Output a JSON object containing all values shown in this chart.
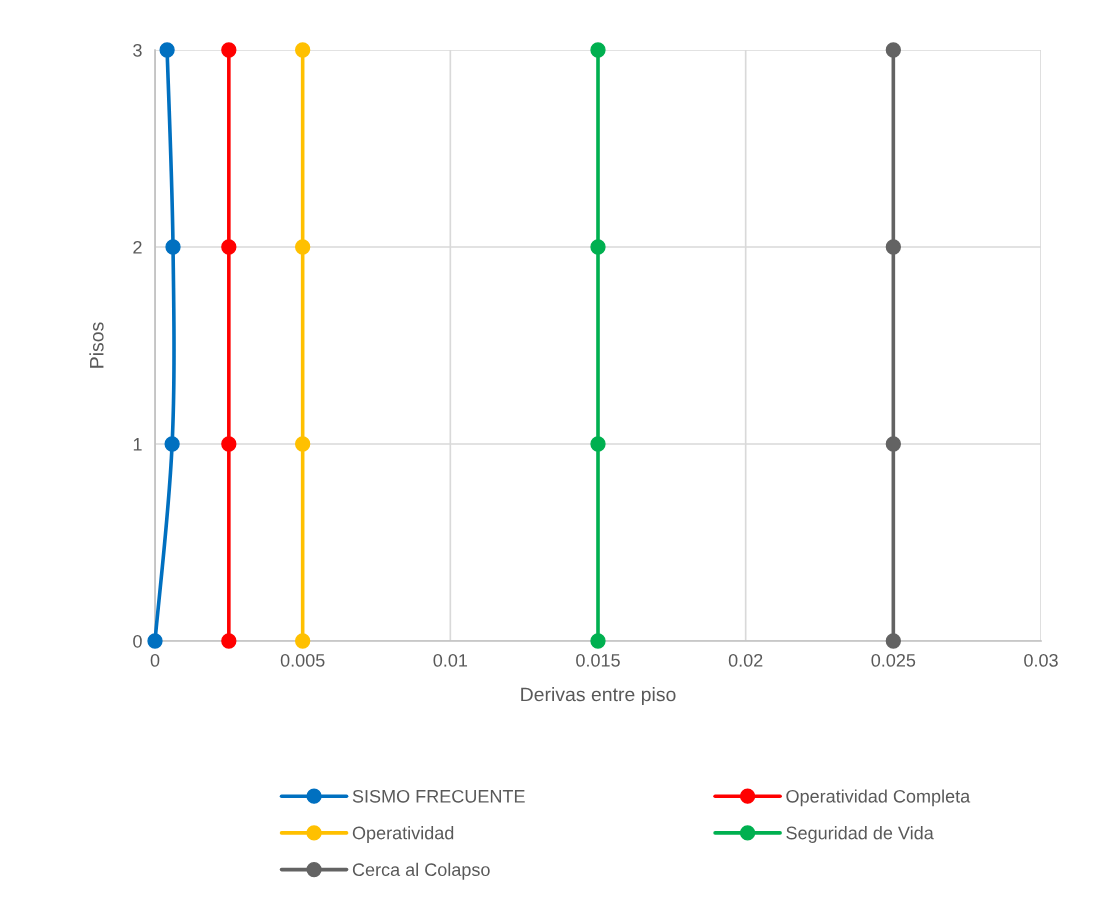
{
  "chart_data": {
    "type": "line",
    "xlabel": "Derivas entre piso",
    "ylabel": "Pisos",
    "xlim": [
      0,
      0.03
    ],
    "xticks": [
      0,
      0.005,
      0.01,
      0.015,
      0.02,
      0.025,
      0.03
    ],
    "ylim": [
      0,
      3
    ],
    "yticks": [
      0,
      1,
      2,
      3
    ],
    "grid": true,
    "legend": "bottom",
    "marker": "circle",
    "line_style": "solid",
    "series": [
      {
        "name": "SISMO FRECUENTE",
        "color": "#0070c0",
        "x": [
          0,
          0.00058,
          0.00061,
          0.00041
        ],
        "values": [
          0,
          1,
          2,
          3
        ]
      },
      {
        "name": "Operatividad Completa",
        "color": "#ff0000",
        "x": [
          0.0025,
          0.0025,
          0.0025,
          0.0025
        ],
        "values": [
          0,
          1,
          2,
          3
        ]
      },
      {
        "name": "Operatividad",
        "color": "#ffc000",
        "x": [
          0.005,
          0.005,
          0.005,
          0.005
        ],
        "values": [
          0,
          1,
          2,
          3
        ]
      },
      {
        "name": "Seguridad de Vida",
        "color": "#00b050",
        "x": [
          0.015,
          0.015,
          0.015,
          0.015
        ],
        "values": [
          0,
          1,
          2,
          3
        ]
      },
      {
        "name": "Cerca al Colapso",
        "color": "#636363",
        "x": [
          0.025,
          0.025,
          0.025,
          0.025
        ],
        "values": [
          0,
          1,
          2,
          3
        ]
      }
    ]
  }
}
